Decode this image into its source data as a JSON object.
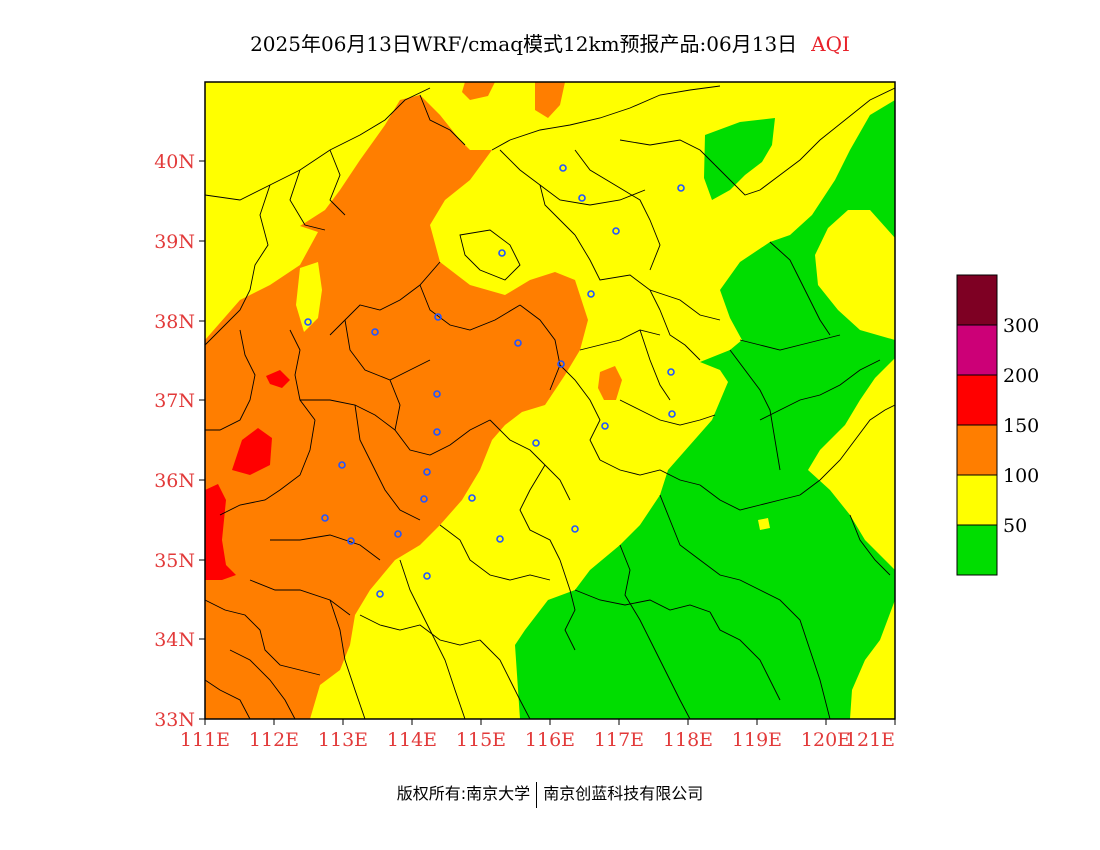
{
  "title": {
    "main": "2025年06月13日WRF/cmaq模式12km预报产品:06月13日",
    "variable": "AQI"
  },
  "map": {
    "lat_labels": [
      "33N",
      "34N",
      "35N",
      "36N",
      "37N",
      "38N",
      "39N",
      "40N"
    ],
    "lon_labels": [
      "111E",
      "112E",
      "113E",
      "114E",
      "115E",
      "116E",
      "117E",
      "118E",
      "119E",
      "120E",
      "121E"
    ]
  },
  "colorbar": {
    "labels": [
      "50",
      "100",
      "150",
      "200",
      "300"
    ],
    "colors": [
      "#00dd00",
      "#ffff00",
      "#ff7e00",
      "#ff0000",
      "#cc0077",
      "#7e0023"
    ]
  },
  "footer": {
    "left": "版权所有:南京大学",
    "right": "南京创蓝科技有限公司"
  }
}
